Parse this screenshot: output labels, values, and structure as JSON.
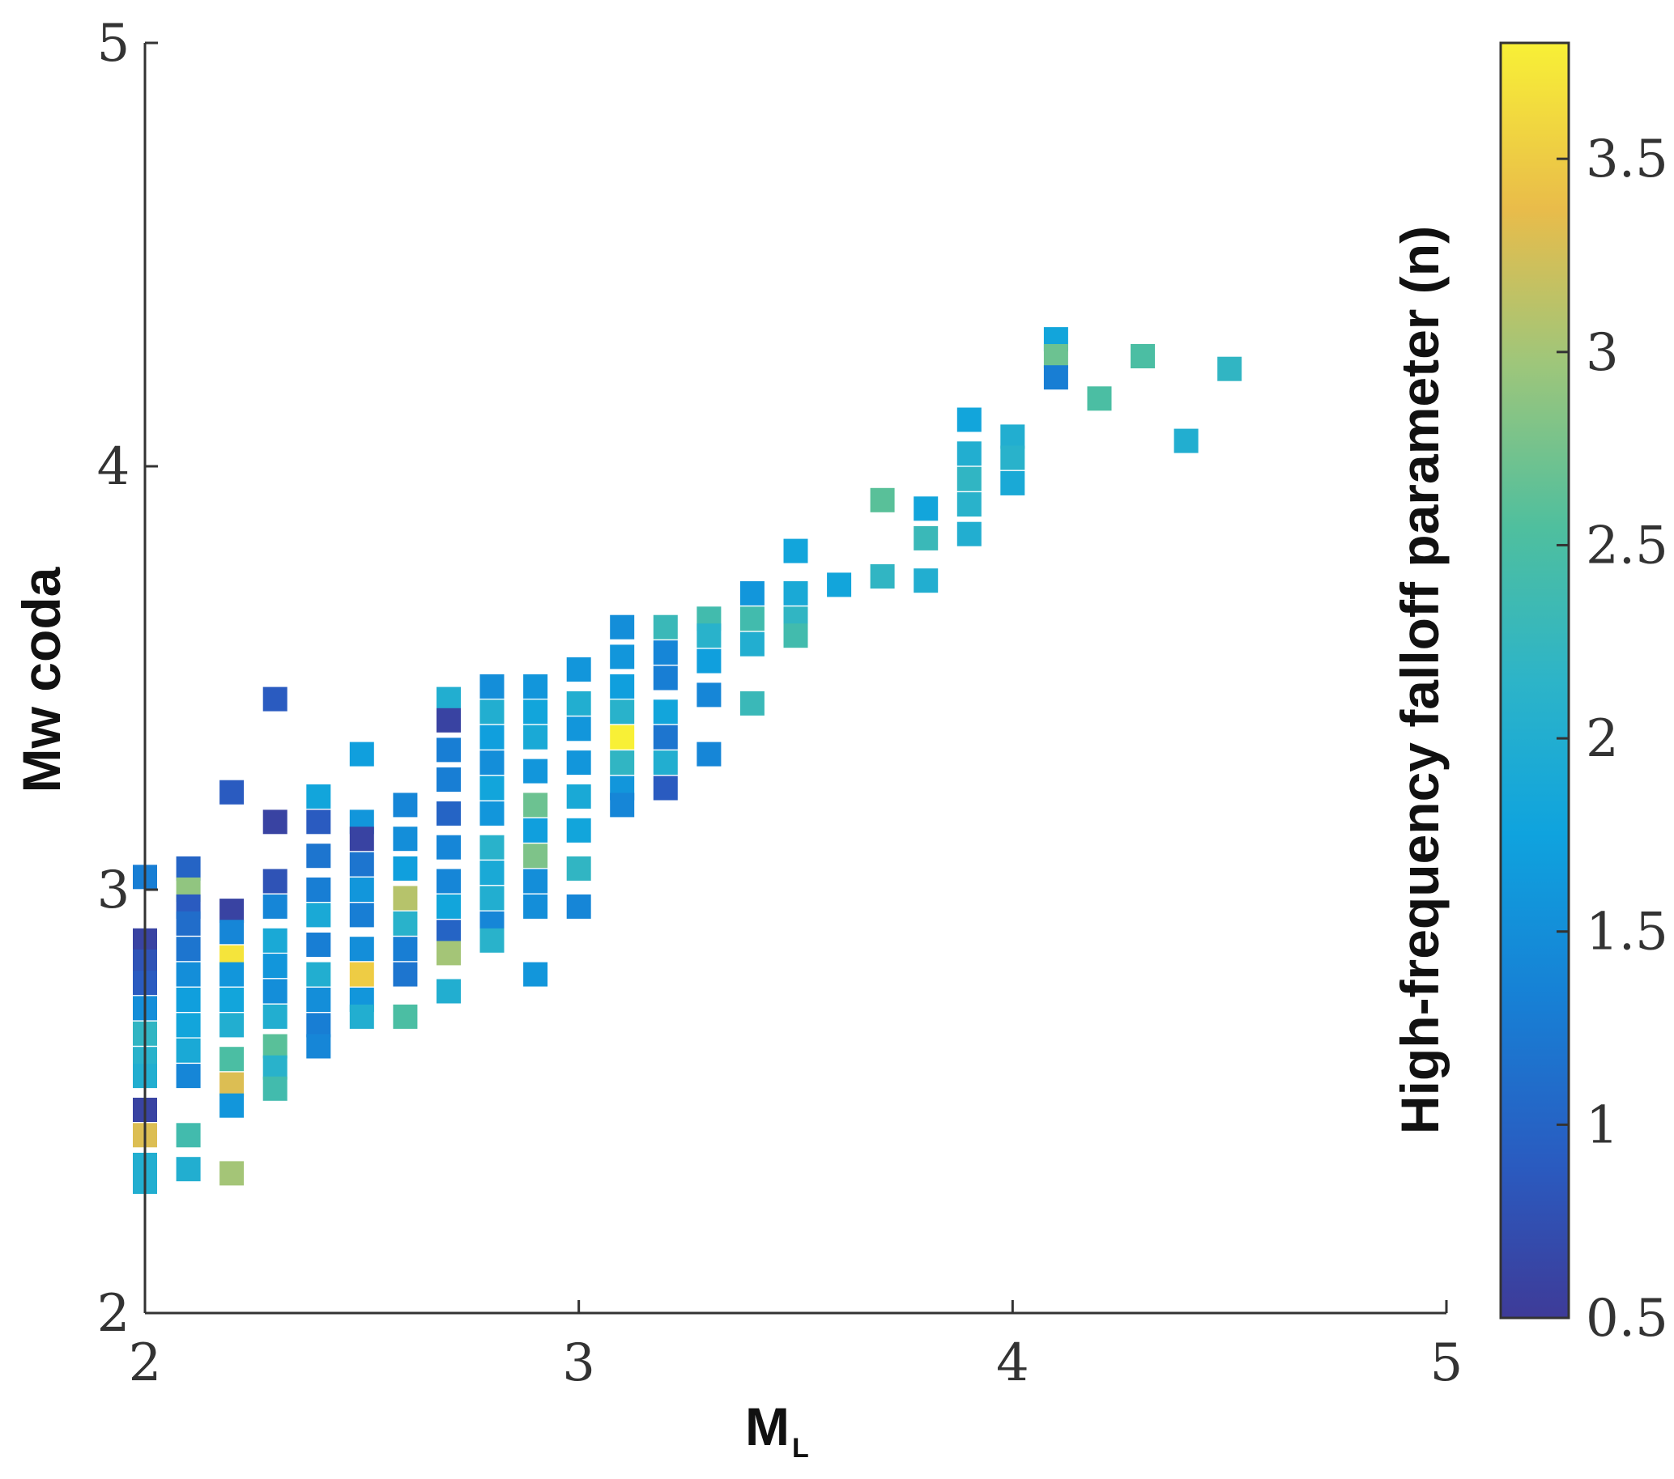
{
  "chart_data": {
    "type": "scatter",
    "title": "",
    "xlabel": "M",
    "xlabel_subscript": "L",
    "ylabel": "Mw coda",
    "colorbar_label": "High-frequency falloff parameter (n)",
    "xlim": [
      2,
      5
    ],
    "ylim": [
      2,
      5
    ],
    "clim": [
      0.5,
      3.8
    ],
    "xticks": [
      "2",
      "3",
      "4",
      "5"
    ],
    "yticks": [
      "2",
      "3",
      "4",
      "5"
    ],
    "cticks": [
      "0.5",
      "1",
      "1.5",
      "2",
      "2.5",
      "3",
      "3.5"
    ],
    "marker": "square",
    "grid": false,
    "points": [
      {
        "x": 2.0,
        "y": 3.03,
        "n": 1.3
      },
      {
        "x": 2.0,
        "y": 2.88,
        "n": 0.6
      },
      {
        "x": 2.0,
        "y": 2.83,
        "n": 0.8
      },
      {
        "x": 2.0,
        "y": 2.78,
        "n": 0.9
      },
      {
        "x": 2.0,
        "y": 2.72,
        "n": 1.5
      },
      {
        "x": 2.0,
        "y": 2.66,
        "n": 2.2
      },
      {
        "x": 2.0,
        "y": 2.6,
        "n": 2.1
      },
      {
        "x": 2.0,
        "y": 2.56,
        "n": 2.0
      },
      {
        "x": 2.0,
        "y": 2.48,
        "n": 0.6
      },
      {
        "x": 2.0,
        "y": 2.42,
        "n": 3.3
      },
      {
        "x": 2.0,
        "y": 2.35,
        "n": 2.0
      },
      {
        "x": 2.0,
        "y": 2.31,
        "n": 2.0
      },
      {
        "x": 2.1,
        "y": 3.05,
        "n": 1.0
      },
      {
        "x": 2.1,
        "y": 3.0,
        "n": 2.9
      },
      {
        "x": 2.1,
        "y": 2.96,
        "n": 0.9
      },
      {
        "x": 2.1,
        "y": 2.92,
        "n": 1.1
      },
      {
        "x": 2.1,
        "y": 2.86,
        "n": 1.2
      },
      {
        "x": 2.1,
        "y": 2.8,
        "n": 1.5
      },
      {
        "x": 2.1,
        "y": 2.74,
        "n": 1.7
      },
      {
        "x": 2.1,
        "y": 2.68,
        "n": 1.8
      },
      {
        "x": 2.1,
        "y": 2.62,
        "n": 1.9
      },
      {
        "x": 2.1,
        "y": 2.56,
        "n": 1.4
      },
      {
        "x": 2.1,
        "y": 2.42,
        "n": 2.4
      },
      {
        "x": 2.1,
        "y": 2.34,
        "n": 2.0
      },
      {
        "x": 2.2,
        "y": 3.23,
        "n": 0.9
      },
      {
        "x": 2.2,
        "y": 2.95,
        "n": 0.6
      },
      {
        "x": 2.2,
        "y": 2.9,
        "n": 1.4
      },
      {
        "x": 2.2,
        "y": 2.84,
        "n": 3.7
      },
      {
        "x": 2.2,
        "y": 2.8,
        "n": 1.6
      },
      {
        "x": 2.2,
        "y": 2.74,
        "n": 1.8
      },
      {
        "x": 2.2,
        "y": 2.68,
        "n": 2.0
      },
      {
        "x": 2.2,
        "y": 2.6,
        "n": 2.5
      },
      {
        "x": 2.2,
        "y": 2.54,
        "n": 3.3
      },
      {
        "x": 2.2,
        "y": 2.49,
        "n": 1.6
      },
      {
        "x": 2.2,
        "y": 2.33,
        "n": 3.0
      },
      {
        "x": 2.3,
        "y": 3.45,
        "n": 0.9
      },
      {
        "x": 2.3,
        "y": 3.16,
        "n": 0.6
      },
      {
        "x": 2.3,
        "y": 3.02,
        "n": 0.8
      },
      {
        "x": 2.3,
        "y": 2.96,
        "n": 1.4
      },
      {
        "x": 2.3,
        "y": 2.88,
        "n": 1.9
      },
      {
        "x": 2.3,
        "y": 2.82,
        "n": 1.6
      },
      {
        "x": 2.3,
        "y": 2.76,
        "n": 1.5
      },
      {
        "x": 2.3,
        "y": 2.7,
        "n": 2.0
      },
      {
        "x": 2.3,
        "y": 2.63,
        "n": 2.6
      },
      {
        "x": 2.3,
        "y": 2.58,
        "n": 2.1
      },
      {
        "x": 2.3,
        "y": 2.53,
        "n": 2.4
      },
      {
        "x": 2.4,
        "y": 3.22,
        "n": 1.8
      },
      {
        "x": 2.4,
        "y": 3.16,
        "n": 0.9
      },
      {
        "x": 2.4,
        "y": 3.08,
        "n": 1.2
      },
      {
        "x": 2.4,
        "y": 3.0,
        "n": 1.3
      },
      {
        "x": 2.4,
        "y": 2.94,
        "n": 1.9
      },
      {
        "x": 2.4,
        "y": 2.87,
        "n": 1.3
      },
      {
        "x": 2.4,
        "y": 2.8,
        "n": 2.0
      },
      {
        "x": 2.4,
        "y": 2.74,
        "n": 1.5
      },
      {
        "x": 2.4,
        "y": 2.68,
        "n": 1.3
      },
      {
        "x": 2.4,
        "y": 2.63,
        "n": 1.4
      },
      {
        "x": 2.5,
        "y": 3.32,
        "n": 1.7
      },
      {
        "x": 2.5,
        "y": 3.16,
        "n": 1.6
      },
      {
        "x": 2.5,
        "y": 3.12,
        "n": 0.6
      },
      {
        "x": 2.5,
        "y": 3.06,
        "n": 1.2
      },
      {
        "x": 2.5,
        "y": 3.0,
        "n": 1.6
      },
      {
        "x": 2.5,
        "y": 2.94,
        "n": 1.3
      },
      {
        "x": 2.5,
        "y": 2.86,
        "n": 1.5
      },
      {
        "x": 2.5,
        "y": 2.8,
        "n": 3.5
      },
      {
        "x": 2.5,
        "y": 2.74,
        "n": 1.6
      },
      {
        "x": 2.5,
        "y": 2.7,
        "n": 2.0
      },
      {
        "x": 2.6,
        "y": 3.2,
        "n": 1.4
      },
      {
        "x": 2.6,
        "y": 3.12,
        "n": 1.5
      },
      {
        "x": 2.6,
        "y": 3.05,
        "n": 1.7
      },
      {
        "x": 2.6,
        "y": 2.98,
        "n": 3.1
      },
      {
        "x": 2.6,
        "y": 2.92,
        "n": 2.1
      },
      {
        "x": 2.6,
        "y": 2.86,
        "n": 1.3
      },
      {
        "x": 2.6,
        "y": 2.8,
        "n": 1.2
      },
      {
        "x": 2.6,
        "y": 2.7,
        "n": 2.5
      },
      {
        "x": 2.7,
        "y": 3.45,
        "n": 2.0
      },
      {
        "x": 2.7,
        "y": 3.4,
        "n": 0.6
      },
      {
        "x": 2.7,
        "y": 3.33,
        "n": 1.3
      },
      {
        "x": 2.7,
        "y": 3.26,
        "n": 1.3
      },
      {
        "x": 2.7,
        "y": 3.18,
        "n": 1.0
      },
      {
        "x": 2.7,
        "y": 3.1,
        "n": 1.4
      },
      {
        "x": 2.7,
        "y": 3.02,
        "n": 1.4
      },
      {
        "x": 2.7,
        "y": 2.96,
        "n": 1.8
      },
      {
        "x": 2.7,
        "y": 2.9,
        "n": 1.0
      },
      {
        "x": 2.7,
        "y": 2.85,
        "n": 3.0
      },
      {
        "x": 2.7,
        "y": 2.76,
        "n": 2.0
      },
      {
        "x": 2.8,
        "y": 3.48,
        "n": 1.5
      },
      {
        "x": 2.8,
        "y": 3.42,
        "n": 2.0
      },
      {
        "x": 2.8,
        "y": 3.36,
        "n": 1.7
      },
      {
        "x": 2.8,
        "y": 3.3,
        "n": 1.5
      },
      {
        "x": 2.8,
        "y": 3.24,
        "n": 1.8
      },
      {
        "x": 2.8,
        "y": 3.18,
        "n": 1.6
      },
      {
        "x": 2.8,
        "y": 3.1,
        "n": 2.1
      },
      {
        "x": 2.8,
        "y": 3.04,
        "n": 1.9
      },
      {
        "x": 2.8,
        "y": 2.98,
        "n": 2.0
      },
      {
        "x": 2.8,
        "y": 2.92,
        "n": 1.4
      },
      {
        "x": 2.8,
        "y": 2.88,
        "n": 2.1
      },
      {
        "x": 2.9,
        "y": 3.48,
        "n": 1.6
      },
      {
        "x": 2.9,
        "y": 3.42,
        "n": 1.8
      },
      {
        "x": 2.9,
        "y": 3.36,
        "n": 1.9
      },
      {
        "x": 2.9,
        "y": 3.28,
        "n": 1.6
      },
      {
        "x": 2.9,
        "y": 3.2,
        "n": 2.7
      },
      {
        "x": 2.9,
        "y": 3.14,
        "n": 1.7
      },
      {
        "x": 2.9,
        "y": 3.08,
        "n": 2.8
      },
      {
        "x": 2.9,
        "y": 3.02,
        "n": 1.5
      },
      {
        "x": 2.9,
        "y": 2.96,
        "n": 1.5
      },
      {
        "x": 2.9,
        "y": 2.8,
        "n": 1.6
      },
      {
        "x": 3.0,
        "y": 3.52,
        "n": 1.6
      },
      {
        "x": 3.0,
        "y": 3.44,
        "n": 2.0
      },
      {
        "x": 3.0,
        "y": 3.38,
        "n": 1.6
      },
      {
        "x": 3.0,
        "y": 3.3,
        "n": 1.6
      },
      {
        "x": 3.0,
        "y": 3.22,
        "n": 1.9
      },
      {
        "x": 3.0,
        "y": 3.14,
        "n": 1.8
      },
      {
        "x": 3.0,
        "y": 3.05,
        "n": 2.2
      },
      {
        "x": 3.0,
        "y": 2.96,
        "n": 1.4
      },
      {
        "x": 3.1,
        "y": 3.62,
        "n": 1.5
      },
      {
        "x": 3.1,
        "y": 3.55,
        "n": 1.6
      },
      {
        "x": 3.1,
        "y": 3.48,
        "n": 1.7
      },
      {
        "x": 3.1,
        "y": 3.42,
        "n": 2.1
      },
      {
        "x": 3.1,
        "y": 3.36,
        "n": 3.8
      },
      {
        "x": 3.1,
        "y": 3.3,
        "n": 2.2
      },
      {
        "x": 3.1,
        "y": 3.24,
        "n": 1.6
      },
      {
        "x": 3.1,
        "y": 3.2,
        "n": 1.4
      },
      {
        "x": 3.2,
        "y": 3.62,
        "n": 2.3
      },
      {
        "x": 3.2,
        "y": 3.56,
        "n": 1.4
      },
      {
        "x": 3.2,
        "y": 3.5,
        "n": 1.3
      },
      {
        "x": 3.2,
        "y": 3.42,
        "n": 1.8
      },
      {
        "x": 3.2,
        "y": 3.36,
        "n": 1.2
      },
      {
        "x": 3.2,
        "y": 3.3,
        "n": 2.0
      },
      {
        "x": 3.2,
        "y": 3.24,
        "n": 0.9
      },
      {
        "x": 3.3,
        "y": 3.64,
        "n": 2.4
      },
      {
        "x": 3.3,
        "y": 3.6,
        "n": 2.1
      },
      {
        "x": 3.3,
        "y": 3.54,
        "n": 1.7
      },
      {
        "x": 3.3,
        "y": 3.46,
        "n": 1.4
      },
      {
        "x": 3.3,
        "y": 3.32,
        "n": 1.4
      },
      {
        "x": 3.4,
        "y": 3.7,
        "n": 1.6
      },
      {
        "x": 3.4,
        "y": 3.64,
        "n": 2.4
      },
      {
        "x": 3.4,
        "y": 3.58,
        "n": 2.0
      },
      {
        "x": 3.4,
        "y": 3.44,
        "n": 2.3
      },
      {
        "x": 3.5,
        "y": 3.8,
        "n": 1.8
      },
      {
        "x": 3.5,
        "y": 3.7,
        "n": 1.9
      },
      {
        "x": 3.5,
        "y": 3.64,
        "n": 2.2
      },
      {
        "x": 3.5,
        "y": 3.6,
        "n": 2.4
      },
      {
        "x": 3.6,
        "y": 3.72,
        "n": 1.8
      },
      {
        "x": 3.7,
        "y": 3.92,
        "n": 2.6
      },
      {
        "x": 3.7,
        "y": 3.74,
        "n": 2.2
      },
      {
        "x": 3.8,
        "y": 3.9,
        "n": 1.8
      },
      {
        "x": 3.8,
        "y": 3.83,
        "n": 2.3
      },
      {
        "x": 3.8,
        "y": 3.73,
        "n": 2.0
      },
      {
        "x": 3.9,
        "y": 4.11,
        "n": 1.8
      },
      {
        "x": 3.9,
        "y": 4.03,
        "n": 2.0
      },
      {
        "x": 3.9,
        "y": 3.97,
        "n": 2.2
      },
      {
        "x": 3.9,
        "y": 3.91,
        "n": 2.1
      },
      {
        "x": 3.9,
        "y": 3.84,
        "n": 2.0
      },
      {
        "x": 4.0,
        "y": 4.07,
        "n": 2.0
      },
      {
        "x": 4.0,
        "y": 4.02,
        "n": 2.1
      },
      {
        "x": 4.0,
        "y": 3.96,
        "n": 1.9
      },
      {
        "x": 4.1,
        "y": 4.3,
        "n": 1.8
      },
      {
        "x": 4.1,
        "y": 4.26,
        "n": 2.7
      },
      {
        "x": 4.1,
        "y": 4.21,
        "n": 1.3
      },
      {
        "x": 4.2,
        "y": 4.16,
        "n": 2.5
      },
      {
        "x": 4.3,
        "y": 4.26,
        "n": 2.5
      },
      {
        "x": 4.4,
        "y": 4.06,
        "n": 2.0
      },
      {
        "x": 4.5,
        "y": 4.23,
        "n": 2.2
      }
    ]
  }
}
